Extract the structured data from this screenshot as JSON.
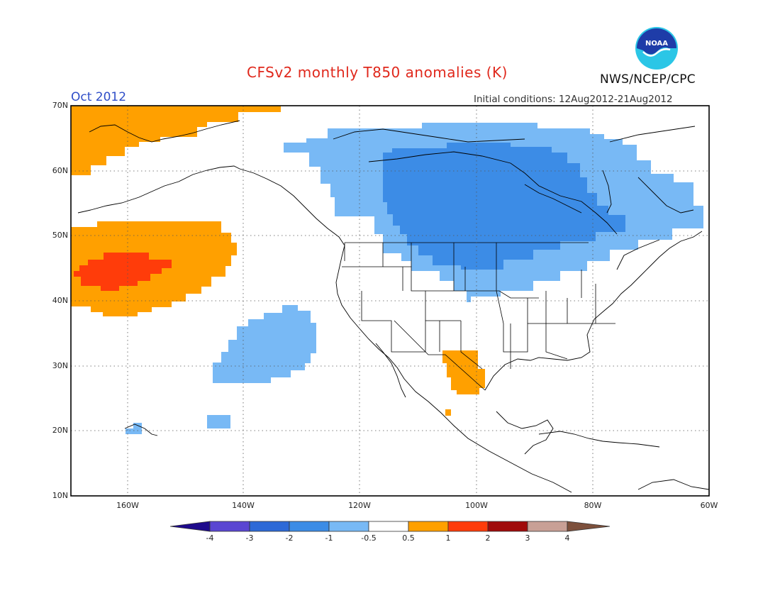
{
  "title": "CFSv2 monthly T850 anomalies (K)",
  "month": "Oct 2012",
  "initial_conditions": "Initial conditions: 12Aug2012-21Aug2012",
  "agency": "NWS/NCEP/CPC",
  "logo_text": "NOAA",
  "map": {
    "projection": "lat-lon",
    "lon_range": [
      -172,
      -60
    ],
    "lat_range": [
      10,
      70
    ],
    "lat_ticks": [
      {
        "value": 70,
        "label": "70N"
      },
      {
        "value": 60,
        "label": "60N"
      },
      {
        "value": 50,
        "label": "50N"
      },
      {
        "value": 40,
        "label": "40N"
      },
      {
        "value": 30,
        "label": "30N"
      },
      {
        "value": 20,
        "label": "20N"
      },
      {
        "value": 10,
        "label": "10N"
      }
    ],
    "lon_ticks": [
      {
        "value": -160,
        "label": "160W"
      },
      {
        "value": -140,
        "label": "140W"
      },
      {
        "value": -120,
        "label": "120W"
      },
      {
        "value": -100,
        "label": "100W"
      },
      {
        "value": -80,
        "label": "80W"
      },
      {
        "value": -60,
        "label": "60W"
      }
    ],
    "gridlines": "dotted"
  },
  "colorbar": {
    "labels": [
      "-4",
      "-3",
      "-2",
      "-1",
      "-0.5",
      "0.5",
      "1",
      "2",
      "3",
      "4"
    ],
    "colors": [
      "#1e0a8c",
      "#5a46d2",
      "#2d69d7",
      "#3c8ce6",
      "#78b9f5",
      "#ffffff",
      "#ffa000",
      "#ff3c0a",
      "#a00a0a",
      "#c8a096",
      "#7d503c"
    ]
  },
  "anomaly_regions": [
    {
      "category": "-0.5 to -1",
      "color": "#78b9f5",
      "area": "Canada / northern US"
    },
    {
      "category": "-1 to -2",
      "color": "#3c8ce6",
      "area": "central Canada"
    },
    {
      "category": "-0.5 to -1",
      "color": "#78b9f5",
      "area": "northeast Pacific"
    },
    {
      "category": "-0.5 to -1",
      "color": "#78b9f5",
      "area": "near Hawaii"
    },
    {
      "category": "0.5 to 1",
      "color": "#ffa000",
      "area": "north Pacific"
    },
    {
      "category": "1 to 2",
      "color": "#ff3c0a",
      "area": "north Pacific core"
    },
    {
      "category": "0.5 to 1",
      "color": "#ffa000",
      "area": "Alaska / Bering"
    },
    {
      "category": "0.5 to 1",
      "color": "#ffa000",
      "area": "northern Mexico"
    }
  ]
}
